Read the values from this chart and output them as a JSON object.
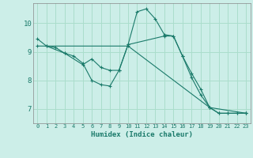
{
  "xlabel": "Humidex (Indice chaleur)",
  "background_color": "#cceee8",
  "grid_color": "#aaddcc",
  "line_color": "#1a7a6a",
  "xlim": [
    -0.5,
    23.5
  ],
  "ylim": [
    6.5,
    10.7
  ],
  "yticks": [
    7,
    8,
    9,
    10
  ],
  "xticks": [
    0,
    1,
    2,
    3,
    4,
    5,
    6,
    7,
    8,
    9,
    10,
    11,
    12,
    13,
    14,
    15,
    16,
    17,
    18,
    19,
    20,
    21,
    22,
    23
  ],
  "series1_x": [
    0,
    1,
    2,
    3,
    4,
    5,
    6,
    7,
    8,
    9,
    10,
    11,
    12,
    13,
    14,
    15,
    16,
    17,
    18,
    19,
    20,
    21,
    22,
    23
  ],
  "series1_y": [
    9.45,
    9.2,
    9.15,
    8.95,
    8.85,
    8.6,
    8.0,
    7.85,
    7.8,
    8.35,
    9.25,
    10.4,
    10.5,
    10.15,
    9.6,
    9.55,
    8.85,
    8.25,
    7.7,
    7.05,
    6.85,
    6.85,
    6.85,
    6.85
  ],
  "series2_x": [
    1,
    3,
    5,
    6,
    7,
    8,
    9,
    10,
    14,
    15,
    16,
    17,
    18,
    19,
    20,
    21,
    22,
    23
  ],
  "series2_y": [
    9.2,
    8.95,
    8.55,
    8.75,
    8.45,
    8.35,
    8.35,
    9.25,
    9.55,
    9.55,
    8.85,
    8.1,
    7.5,
    7.05,
    6.85,
    6.85,
    6.85,
    6.85
  ],
  "series3_x": [
    0,
    10,
    19,
    23
  ],
  "series3_y": [
    9.2,
    9.2,
    7.05,
    6.85
  ]
}
